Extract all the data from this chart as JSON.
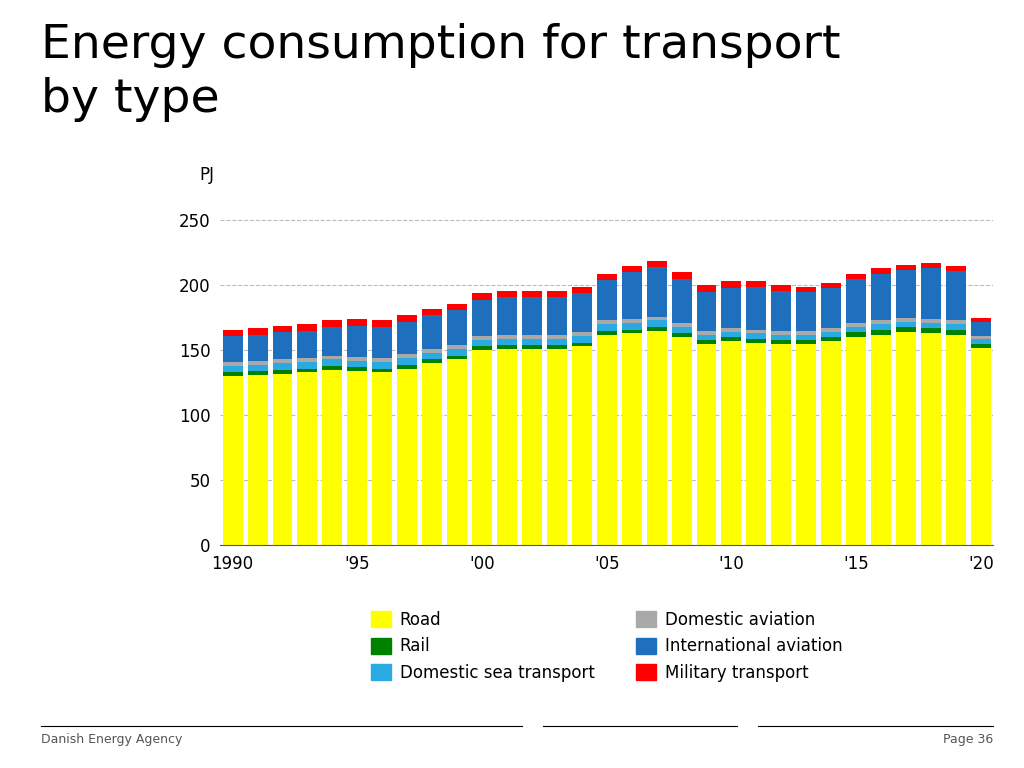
{
  "title": "Energy consumption for transport\nby type",
  "ylabel": "PJ",
  "years": [
    1990,
    1991,
    1992,
    1993,
    1994,
    1995,
    1996,
    1997,
    1998,
    1999,
    2000,
    2001,
    2002,
    2003,
    2004,
    2005,
    2006,
    2007,
    2008,
    2009,
    2010,
    2011,
    2012,
    2013,
    2014,
    2015,
    2016,
    2017,
    2018,
    2019,
    2020
  ],
  "road": [
    130,
    131,
    132,
    133,
    135,
    134,
    133,
    136,
    140,
    143,
    150,
    151,
    151,
    151,
    153,
    162,
    163,
    165,
    160,
    155,
    157,
    156,
    155,
    155,
    157,
    160,
    162,
    164,
    163,
    162,
    152
  ],
  "rail": [
    3,
    3,
    3,
    3,
    3,
    3,
    3,
    3,
    3,
    3,
    3,
    3,
    3,
    3,
    3,
    3,
    3,
    3,
    3,
    3,
    3,
    3,
    3,
    3,
    3,
    4,
    4,
    4,
    4,
    4,
    3
  ],
  "domestic_sea": [
    5,
    5,
    5,
    5,
    5,
    5,
    5,
    5,
    5,
    5,
    5,
    5,
    5,
    5,
    5,
    5,
    5,
    5,
    5,
    4,
    4,
    4,
    4,
    4,
    4,
    4,
    4,
    4,
    4,
    4,
    4
  ],
  "domestic_aviation": [
    3,
    3,
    3,
    3,
    3,
    3,
    3,
    3,
    3,
    3,
    3,
    3,
    3,
    3,
    3,
    3,
    3,
    3,
    3,
    3,
    3,
    3,
    3,
    3,
    3,
    3,
    3,
    3,
    3,
    3,
    2
  ],
  "international_aviation": [
    20,
    20,
    21,
    21,
    22,
    24,
    24,
    25,
    26,
    27,
    28,
    29,
    29,
    29,
    30,
    31,
    36,
    38,
    34,
    30,
    31,
    33,
    31,
    30,
    31,
    34,
    36,
    37,
    39,
    38,
    11
  ],
  "military": [
    5,
    5,
    5,
    5,
    5,
    5,
    5,
    5,
    5,
    5,
    5,
    5,
    5,
    5,
    5,
    5,
    5,
    5,
    5,
    5,
    5,
    4,
    4,
    4,
    4,
    4,
    4,
    4,
    4,
    4,
    3
  ],
  "colors": {
    "road": "#FFFF00",
    "rail": "#008000",
    "domestic_sea": "#29ABE2",
    "domestic_aviation": "#A9A9A9",
    "international_aviation": "#1F6FBF",
    "military": "#FF0000"
  },
  "legend_order": [
    "road",
    "rail",
    "domestic_sea",
    "domestic_aviation",
    "international_aviation",
    "military"
  ],
  "legend_labels": {
    "road": "Road",
    "rail": "Rail",
    "domestic_sea": "Domestic sea transport",
    "domestic_aviation": "Domestic aviation",
    "international_aviation": "International aviation",
    "military": "Military transport"
  },
  "ylim": [
    0,
    260
  ],
  "yticks": [
    0,
    50,
    100,
    150,
    200,
    250
  ],
  "tick_years": [
    1990,
    1995,
    2000,
    2005,
    2010,
    2015,
    2020
  ],
  "tick_labels": [
    "1990",
    "'95",
    "'00",
    "'05",
    "'10",
    "'15",
    "'20"
  ],
  "footer_left": "Danish Energy Agency",
  "footer_right": "Page 36",
  "background_color": "#ffffff"
}
